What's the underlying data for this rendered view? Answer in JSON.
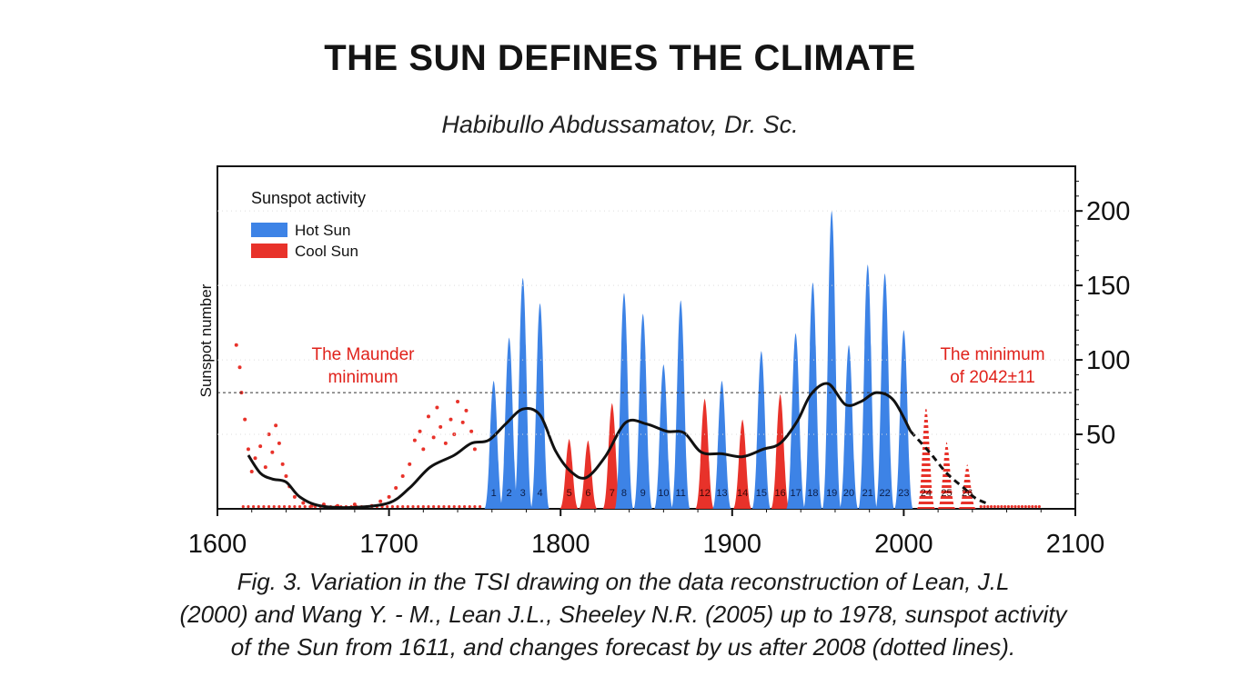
{
  "header": {
    "title": "THE SUN DEFINES THE CLIMATE",
    "author": "Habibullo Abdussamatov, Dr. Sc."
  },
  "caption": {
    "line1": "Fig. 3. Variation in the TSI drawing on the data reconstruction of Lean, J.L",
    "line2": "(2000) and Wang Y. - M., Lean J.L., Sheeley N.R. (2005) up to 1978, sunspot activity",
    "line3": "of the Sun from 1611, and changes forecast by us after 2008 (dotted lines)."
  },
  "colors": {
    "hot": "#3d83e6",
    "cool": "#e8322a",
    "trend": "#111111",
    "annotation": "#e0221b"
  },
  "chart_data": {
    "type": "area",
    "ylabel": "Sunspot number",
    "xlim": [
      1600,
      2100
    ],
    "ylim": [
      0,
      230
    ],
    "x_ticks": [
      1600,
      1700,
      1800,
      1900,
      2000,
      2100
    ],
    "y_ticks": [
      50,
      100,
      150,
      200
    ],
    "legend": {
      "title": "Sunspot activity",
      "placement": "top-left",
      "entries": [
        {
          "label": "Hot Sun",
          "color": "#3d83e6"
        },
        {
          "label": "Cool Sun",
          "color": "#e8322a"
        }
      ]
    },
    "annotations": [
      {
        "line1": "The Maunder",
        "line2": "minimum"
      },
      {
        "line1": "The minimum",
        "line2": "of 2042±11"
      }
    ],
    "reference_line": {
      "y": 78
    },
    "cycles": [
      {
        "label": "1",
        "peak_year": 1761,
        "peak": 86,
        "kind": "hot"
      },
      {
        "label": "2",
        "peak_year": 1770,
        "peak": 115,
        "kind": "hot"
      },
      {
        "label": "3",
        "peak_year": 1778,
        "peak": 155,
        "kind": "hot"
      },
      {
        "label": "4",
        "peak_year": 1788,
        "peak": 138,
        "kind": "hot"
      },
      {
        "label": "5",
        "peak_year": 1805,
        "peak": 47,
        "kind": "cool"
      },
      {
        "label": "6",
        "peak_year": 1816,
        "peak": 46,
        "kind": "cool"
      },
      {
        "label": "7",
        "peak_year": 1830,
        "peak": 71,
        "kind": "cool"
      },
      {
        "label": "8",
        "peak_year": 1837,
        "peak": 145,
        "kind": "hot"
      },
      {
        "label": "9",
        "peak_year": 1848,
        "peak": 131,
        "kind": "hot"
      },
      {
        "label": "10",
        "peak_year": 1860,
        "peak": 97,
        "kind": "hot"
      },
      {
        "label": "11",
        "peak_year": 1870,
        "peak": 140,
        "kind": "hot"
      },
      {
        "label": "12",
        "peak_year": 1884,
        "peak": 74,
        "kind": "cool"
      },
      {
        "label": "13",
        "peak_year": 1894,
        "peak": 86,
        "kind": "hot"
      },
      {
        "label": "14",
        "peak_year": 1906,
        "peak": 60,
        "kind": "cool"
      },
      {
        "label": "15",
        "peak_year": 1917,
        "peak": 106,
        "kind": "hot"
      },
      {
        "label": "16",
        "peak_year": 1928,
        "peak": 77,
        "kind": "cool"
      },
      {
        "label": "17",
        "peak_year": 1937,
        "peak": 118,
        "kind": "hot"
      },
      {
        "label": "18",
        "peak_year": 1947,
        "peak": 152,
        "kind": "hot"
      },
      {
        "label": "19",
        "peak_year": 1958,
        "peak": 200,
        "kind": "hot"
      },
      {
        "label": "20",
        "peak_year": 1968,
        "peak": 110,
        "kind": "hot"
      },
      {
        "label": "21",
        "peak_year": 1979,
        "peak": 164,
        "kind": "hot"
      },
      {
        "label": "22",
        "peak_year": 1989,
        "peak": 158,
        "kind": "hot"
      },
      {
        "label": "23",
        "peak_year": 2000,
        "peak": 120,
        "kind": "hot"
      },
      {
        "label": "24",
        "peak_year": 2013,
        "peak": 68,
        "kind": "forecast"
      },
      {
        "label": "25",
        "peak_year": 2025,
        "peak": 45,
        "kind": "forecast"
      },
      {
        "label": "26",
        "peak_year": 2037,
        "peak": 30,
        "kind": "forecast"
      }
    ],
    "trend": {
      "x": [
        1618,
        1625,
        1632,
        1640,
        1648,
        1660,
        1680,
        1700,
        1712,
        1724,
        1738,
        1748,
        1758,
        1768,
        1778,
        1788,
        1797,
        1806,
        1815,
        1826,
        1838,
        1850,
        1862,
        1872,
        1882,
        1894,
        1906,
        1918,
        1928,
        1938,
        1946,
        1956,
        1966,
        1975,
        1984,
        1994,
        2004
      ],
      "y": [
        36,
        24,
        20,
        18,
        8,
        2,
        1,
        4,
        14,
        28,
        36,
        44,
        46,
        57,
        67,
        63,
        39,
        25,
        21,
        35,
        58,
        57,
        52,
        51,
        38,
        37,
        35,
        40,
        44,
        59,
        77,
        84,
        70,
        72,
        78,
        73,
        52
      ]
    },
    "forecast_trend": {
      "x": [
        2004,
        2015,
        2025,
        2035,
        2042,
        2050
      ],
      "y": [
        52,
        38,
        24,
        14,
        7,
        3
      ]
    },
    "maunder_scatter_points": [
      [
        1611,
        110
      ],
      [
        1613,
        95
      ],
      [
        1614,
        78
      ],
      [
        1616,
        60
      ],
      [
        1618,
        40
      ],
      [
        1620,
        25
      ],
      [
        1622,
        34
      ],
      [
        1625,
        42
      ],
      [
        1628,
        28
      ],
      [
        1630,
        50
      ],
      [
        1632,
        38
      ],
      [
        1634,
        56
      ],
      [
        1636,
        44
      ],
      [
        1638,
        30
      ],
      [
        1640,
        22
      ],
      [
        1642,
        15
      ],
      [
        1645,
        8
      ],
      [
        1650,
        4
      ],
      [
        1655,
        2
      ],
      [
        1662,
        3
      ],
      [
        1670,
        2
      ],
      [
        1680,
        3
      ],
      [
        1690,
        2
      ],
      [
        1695,
        5
      ],
      [
        1700,
        8
      ],
      [
        1704,
        14
      ],
      [
        1708,
        22
      ],
      [
        1712,
        30
      ],
      [
        1715,
        46
      ],
      [
        1718,
        52
      ],
      [
        1720,
        40
      ],
      [
        1723,
        62
      ],
      [
        1726,
        48
      ],
      [
        1728,
        68
      ],
      [
        1730,
        55
      ],
      [
        1733,
        44
      ],
      [
        1736,
        60
      ],
      [
        1738,
        50
      ],
      [
        1740,
        72
      ],
      [
        1743,
        58
      ],
      [
        1745,
        66
      ],
      [
        1748,
        52
      ],
      [
        1750,
        40
      ]
    ]
  }
}
